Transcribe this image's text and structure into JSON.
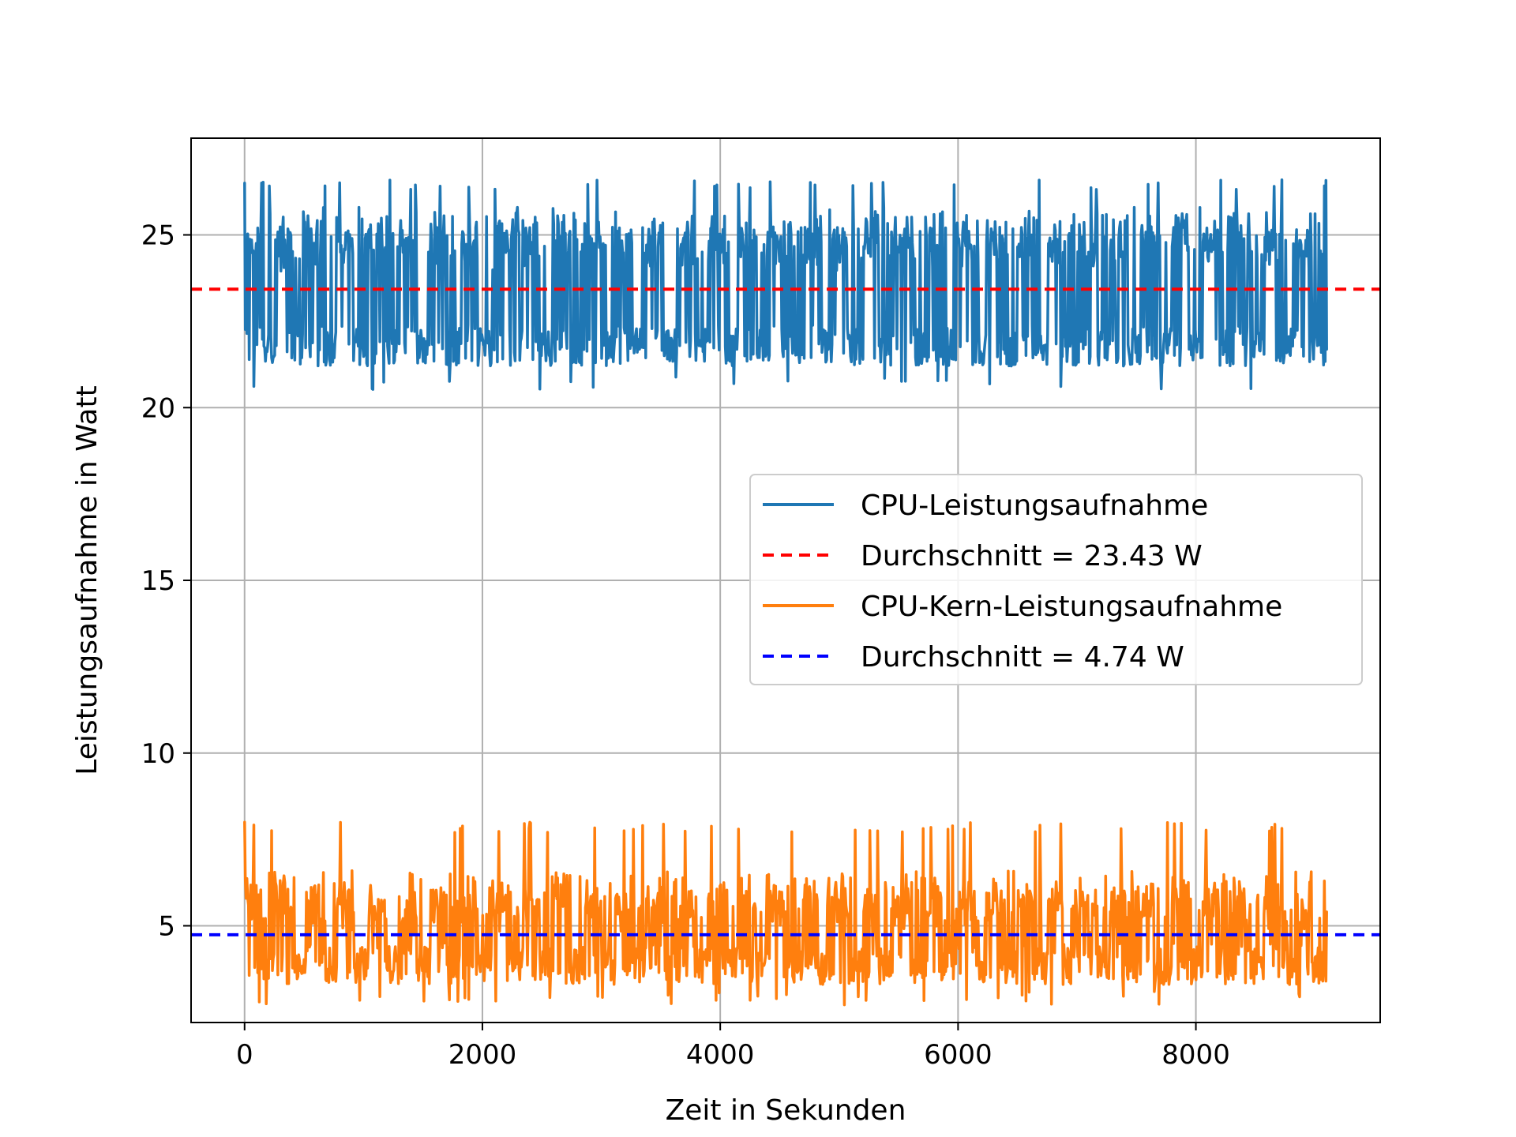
{
  "chart_data": {
    "type": "line",
    "title": "",
    "xlabel": "Zeit in Sekunden",
    "ylabel": "Leistungsaufnahme in Watt",
    "xlim": [
      -450,
      9550
    ],
    "ylim": [
      2.2,
      27.8
    ],
    "xticks": [
      0,
      2000,
      4000,
      6000,
      8000
    ],
    "yticks": [
      5,
      10,
      15,
      20,
      25
    ],
    "grid": true,
    "legend_position": "center-right",
    "duration_seconds": 9100,
    "series": [
      {
        "name": "CPU-Leistungsaufnahme",
        "color": "#1f77b4",
        "style": "solid",
        "min": 20.5,
        "max": 26.6,
        "typical_low": 21.2,
        "typical_high": 25.8,
        "start_peak": 26.5
      },
      {
        "name": "Durchschnitt = 23.43 W",
        "color": "#ff0000",
        "style": "dashed",
        "value": 23.43
      },
      {
        "name": "CPU-Kern-Leistungsaufnahme",
        "color": "#ff7f0e",
        "style": "solid",
        "min": 2.7,
        "max": 8.0,
        "typical_low": 3.3,
        "typical_high": 6.6,
        "start_peak": 8.0
      },
      {
        "name": "Durchschnitt = 4.74 W",
        "color": "#0000ff",
        "style": "dashed",
        "value": 4.74
      }
    ]
  }
}
